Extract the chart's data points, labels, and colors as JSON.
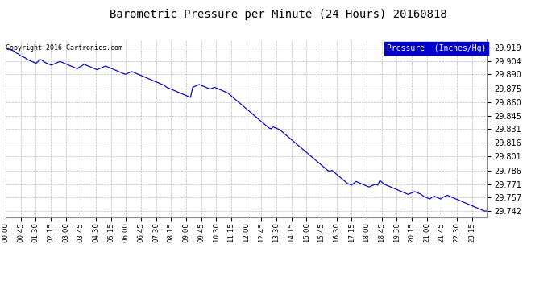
{
  "title": "Barometric Pressure per Minute (24 Hours) 20160818",
  "copyright": "Copyright 2016 Cartronics.com",
  "legend_label": "Pressure  (Inches/Hg)",
  "line_color": "#0000bb",
  "background_color": "#ffffff",
  "grid_color": "#bbbbbb",
  "yticks": [
    29.742,
    29.757,
    29.771,
    29.786,
    29.801,
    29.816,
    29.831,
    29.845,
    29.86,
    29.875,
    29.89,
    29.904,
    29.919
  ],
  "ylim_min": 29.735,
  "ylim_max": 29.928,
  "xtick_labels": [
    "00:00",
    "00:45",
    "01:30",
    "02:15",
    "03:00",
    "03:45",
    "04:30",
    "05:15",
    "06:00",
    "06:45",
    "07:30",
    "08:15",
    "09:00",
    "09:45",
    "10:30",
    "11:15",
    "12:00",
    "12:45",
    "13:30",
    "14:15",
    "15:00",
    "15:45",
    "16:30",
    "17:15",
    "18:00",
    "18:45",
    "19:30",
    "20:15",
    "21:00",
    "21:45",
    "22:30",
    "23:15"
  ],
  "pressure_data": [
    29.919,
    29.918,
    29.917,
    29.916,
    29.915,
    29.913,
    29.912,
    29.91,
    29.909,
    29.908,
    29.906,
    29.905,
    29.904,
    29.903,
    29.902,
    29.904,
    29.906,
    29.905,
    29.903,
    29.902,
    29.901,
    29.9,
    29.901,
    29.902,
    29.903,
    29.904,
    29.903,
    29.902,
    29.901,
    29.9,
    29.899,
    29.898,
    29.897,
    29.896,
    29.898,
    29.899,
    29.901,
    29.9,
    29.899,
    29.898,
    29.897,
    29.896,
    29.895,
    29.896,
    29.897,
    29.898,
    29.899,
    29.898,
    29.897,
    29.896,
    29.895,
    29.894,
    29.893,
    29.892,
    29.891,
    29.89,
    29.891,
    29.892,
    29.893,
    29.892,
    29.891,
    29.89,
    29.889,
    29.888,
    29.887,
    29.886,
    29.885,
    29.884,
    29.883,
    29.882,
    29.881,
    29.88,
    29.879,
    29.878,
    29.876,
    29.875,
    29.874,
    29.873,
    29.872,
    29.871,
    29.87,
    29.869,
    29.868,
    29.867,
    29.866,
    29.865,
    29.876,
    29.877,
    29.878,
    29.879,
    29.878,
    29.877,
    29.876,
    29.875,
    29.874,
    29.875,
    29.876,
    29.875,
    29.874,
    29.873,
    29.872,
    29.871,
    29.87,
    29.868,
    29.866,
    29.864,
    29.862,
    29.86,
    29.858,
    29.856,
    29.854,
    29.852,
    29.85,
    29.848,
    29.846,
    29.844,
    29.842,
    29.84,
    29.838,
    29.836,
    29.834,
    29.832,
    29.831,
    29.833,
    29.832,
    29.831,
    29.83,
    29.828,
    29.826,
    29.824,
    29.822,
    29.82,
    29.818,
    29.816,
    29.814,
    29.812,
    29.81,
    29.808,
    29.806,
    29.804,
    29.802,
    29.8,
    29.798,
    29.796,
    29.794,
    29.792,
    29.79,
    29.788,
    29.786,
    29.785,
    29.786,
    29.784,
    29.782,
    29.78,
    29.778,
    29.776,
    29.774,
    29.772,
    29.771,
    29.77,
    29.772,
    29.774,
    29.773,
    29.772,
    29.771,
    29.77,
    29.769,
    29.768,
    29.769,
    29.77,
    29.771,
    29.77,
    29.775,
    29.773,
    29.771,
    29.77,
    29.769,
    29.768,
    29.767,
    29.766,
    29.765,
    29.764,
    29.763,
    29.762,
    29.761,
    29.76,
    29.761,
    29.762,
    29.763,
    29.762,
    29.761,
    29.76,
    29.758,
    29.757,
    29.756,
    29.755,
    29.757,
    29.758,
    29.757,
    29.756,
    29.755,
    29.757,
    29.758,
    29.759,
    29.758,
    29.757,
    29.756,
    29.755,
    29.754,
    29.753,
    29.752,
    29.751,
    29.75,
    29.749,
    29.748,
    29.747,
    29.746,
    29.745,
    29.744,
    29.743,
    29.742,
    29.742
  ]
}
